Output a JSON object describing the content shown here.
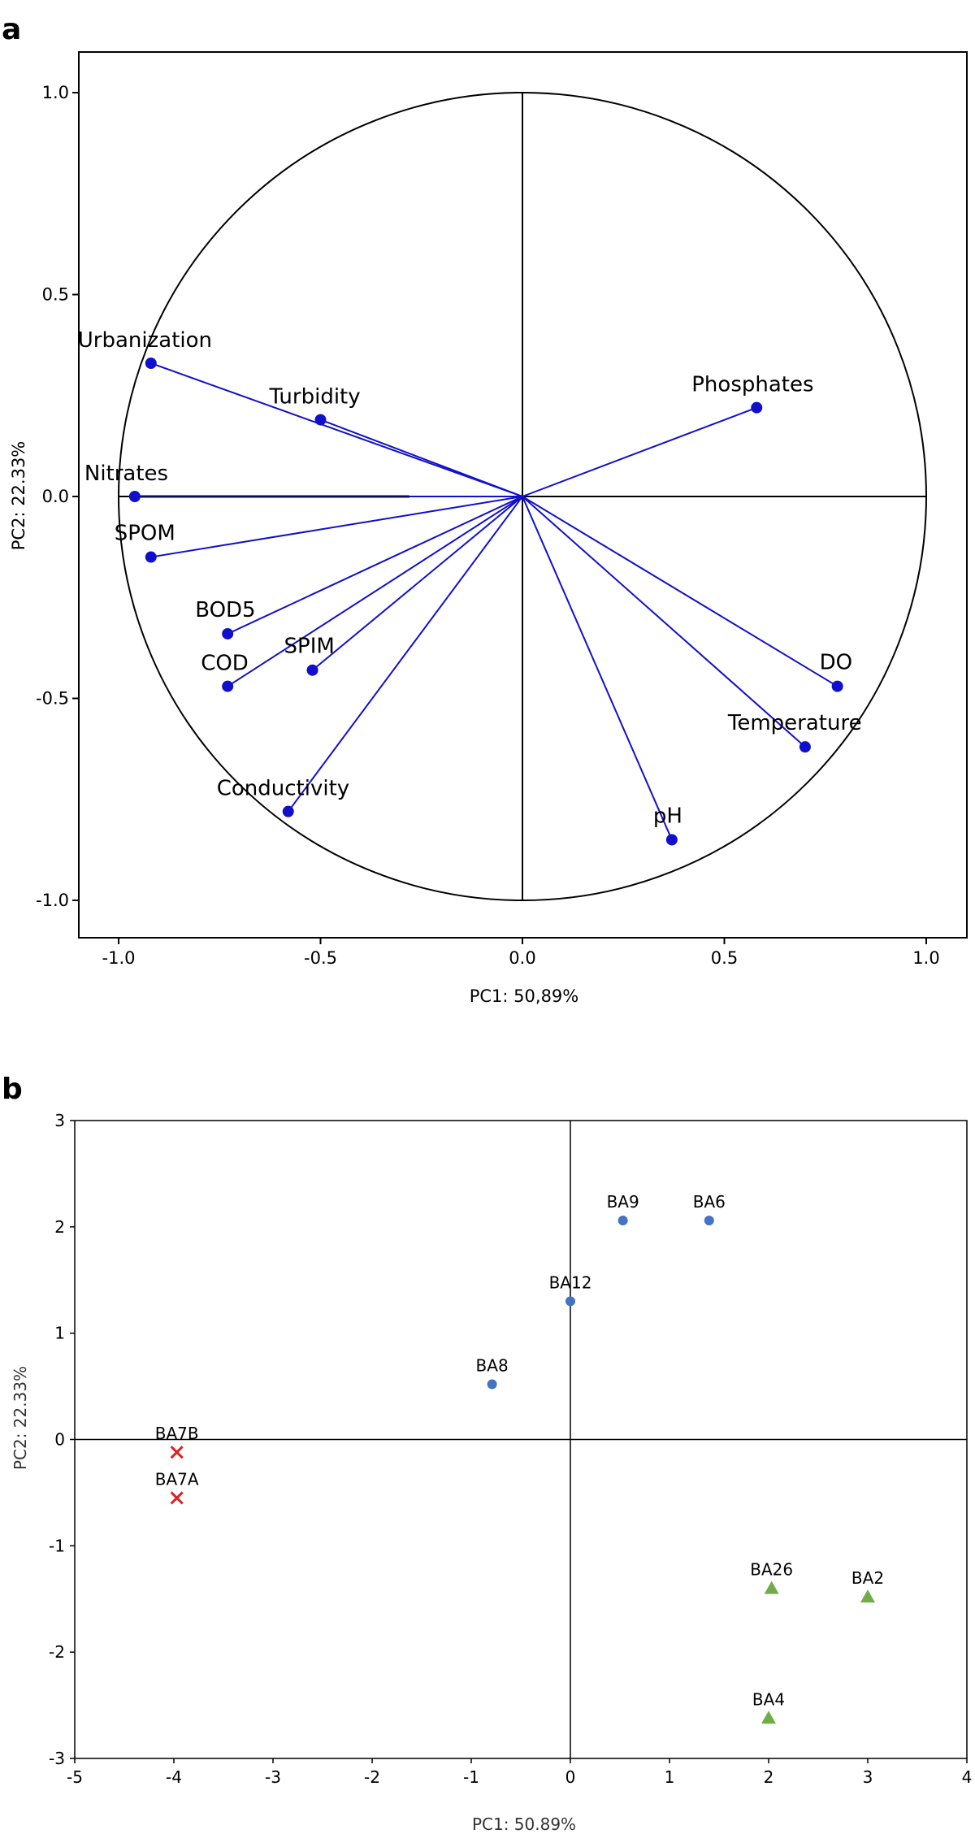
{
  "chart_data": [
    {
      "panel": "a",
      "type": "scatter",
      "xlabel": "PC1: 50,89%",
      "ylabel": "PC2: 22.33%",
      "xlim": [
        -1.1,
        1.1
      ],
      "ylim": [
        -1.1,
        1.1
      ],
      "xticks": [
        {
          "v": -1.0,
          "label": "-1.0"
        },
        {
          "v": -0.5,
          "label": "-0.5"
        },
        {
          "v": 0.0,
          "label": "0.0"
        },
        {
          "v": 0.5,
          "label": "0.5"
        },
        {
          "v": 1.0,
          "label": "1.0"
        }
      ],
      "yticks": [
        {
          "v": 1.0,
          "label": "1.0"
        },
        {
          "v": 0.5,
          "label": "0.5"
        },
        {
          "v": 0.0,
          "label": "0.0"
        },
        {
          "v": -0.5,
          "label": "-0.5"
        },
        {
          "v": -1.0,
          "label": "-1.0"
        }
      ],
      "circle_radius": 1.0,
      "vector_color": "#1010cc",
      "variables": [
        {
          "name": "Urbanization",
          "x": -0.92,
          "y": 0.33
        },
        {
          "name": "Turbidity",
          "x": -0.5,
          "y": 0.19
        },
        {
          "name": "Phosphates",
          "x": 0.58,
          "y": 0.22
        },
        {
          "name": "Nitrates",
          "x": -0.96,
          "y": 0.0
        },
        {
          "name": "SPOM",
          "x": -0.92,
          "y": -0.15
        },
        {
          "name": "BOD5",
          "x": -0.73,
          "y": -0.34
        },
        {
          "name": "COD",
          "x": -0.73,
          "y": -0.47
        },
        {
          "name": "SPIM",
          "x": -0.52,
          "y": -0.43
        },
        {
          "name": "Conductivity",
          "x": -0.58,
          "y": -0.78
        },
        {
          "name": "DO",
          "x": 0.78,
          "y": -0.47
        },
        {
          "name": "Temperature",
          "x": 0.7,
          "y": -0.62
        },
        {
          "name": "pH",
          "x": 0.37,
          "y": -0.85
        }
      ]
    },
    {
      "panel": "b",
      "type": "scatter",
      "xlabel": "PC1: 50.89%",
      "ylabel": "PC2: 22.33%",
      "xlim": [
        -5,
        4
      ],
      "ylim": [
        -3,
        3
      ],
      "xticks": [
        {
          "v": -5,
          "label": "-5"
        },
        {
          "v": -4,
          "label": "-4"
        },
        {
          "v": -3,
          "label": "-3"
        },
        {
          "v": -2,
          "label": "-2"
        },
        {
          "v": -1,
          "label": "-1"
        },
        {
          "v": 0,
          "label": "0"
        },
        {
          "v": 1,
          "label": "1"
        },
        {
          "v": 2,
          "label": "2"
        },
        {
          "v": 3,
          "label": "3"
        },
        {
          "v": 4,
          "label": "4"
        }
      ],
      "yticks": [
        {
          "v": 3,
          "label": "3"
        },
        {
          "v": 2,
          "label": "2"
        },
        {
          "v": 1,
          "label": "1"
        },
        {
          "v": 0,
          "label": "0"
        },
        {
          "v": -1,
          "label": "-1"
        },
        {
          "v": -2,
          "label": "-2"
        },
        {
          "v": -3,
          "label": "-3"
        }
      ],
      "groups": [
        {
          "marker": "x",
          "color": "#e02020",
          "points": [
            {
              "name": "BA7B",
              "x": -3.97,
              "y": -0.12
            },
            {
              "name": "BA7A",
              "x": -3.97,
              "y": -0.55
            }
          ]
        },
        {
          "marker": "circle",
          "color": "#4472c4",
          "points": [
            {
              "name": "BA9",
              "x": 0.53,
              "y": 2.06
            },
            {
              "name": "BA6",
              "x": 1.4,
              "y": 2.06
            },
            {
              "name": "BA12",
              "x": 0.0,
              "y": 1.3
            },
            {
              "name": "BA8",
              "x": -0.79,
              "y": 0.52
            }
          ]
        },
        {
          "marker": "triangle",
          "color": "#70ad47",
          "points": [
            {
              "name": "BA26",
              "x": 2.03,
              "y": -1.4
            },
            {
              "name": "BA2",
              "x": 3.0,
              "y": -1.48
            },
            {
              "name": "BA4",
              "x": 2.0,
              "y": -2.62
            }
          ]
        }
      ]
    }
  ]
}
